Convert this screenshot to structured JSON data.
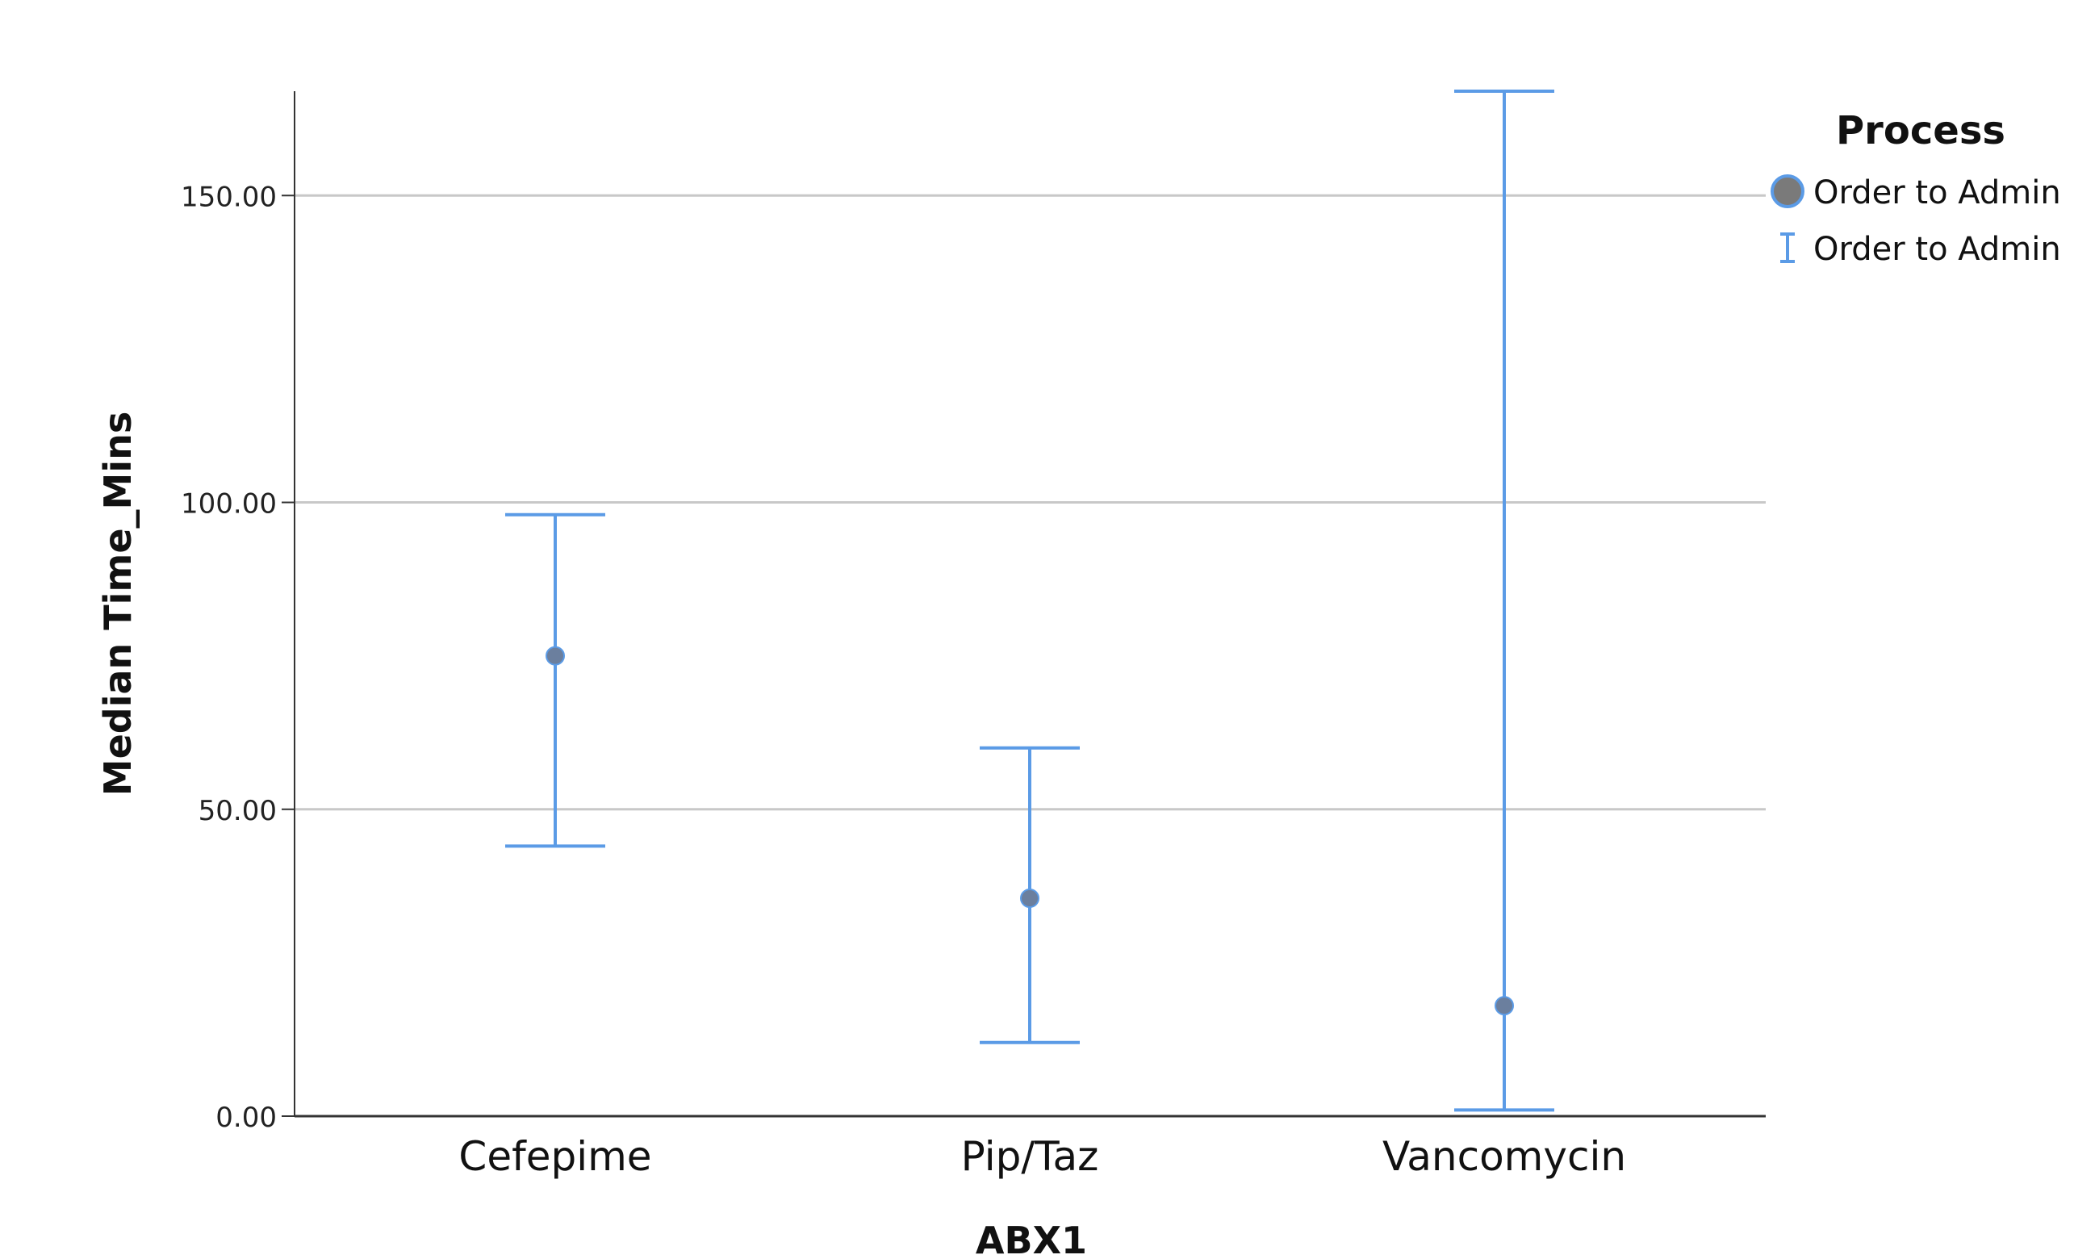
{
  "chart_data": {
    "type": "scatter",
    "xlabel": "ABX1",
    "ylabel": "Median Time_Mins",
    "categories": [
      "Cefepime",
      "Pip/Taz",
      "Vancomycin"
    ],
    "ylim": [
      0,
      167
    ],
    "yticks": [
      0,
      50,
      100,
      150
    ],
    "ytick_labels": [
      "0.00",
      "50.00",
      "100.00",
      "150.00"
    ],
    "grid": "horizontal",
    "legend": {
      "title": "Process",
      "position": "top-right",
      "entries": [
        {
          "label": "Order to Admin",
          "marker": "circle"
        },
        {
          "label": "Order to Admin",
          "marker": "error-bar"
        }
      ]
    },
    "series": [
      {
        "type": "point",
        "values": [
          75,
          35.5,
          18
        ]
      },
      {
        "type": "error-bar",
        "lower": [
          44,
          12,
          1
        ],
        "upper": [
          98,
          60,
          167
        ]
      }
    ],
    "colors": {
      "point_fill": "#6b7f9e",
      "error_bar": "#5b9be6",
      "grid": "#c8c8c8",
      "axis": "#333333",
      "legend_dot": "#7a7a7a"
    }
  }
}
